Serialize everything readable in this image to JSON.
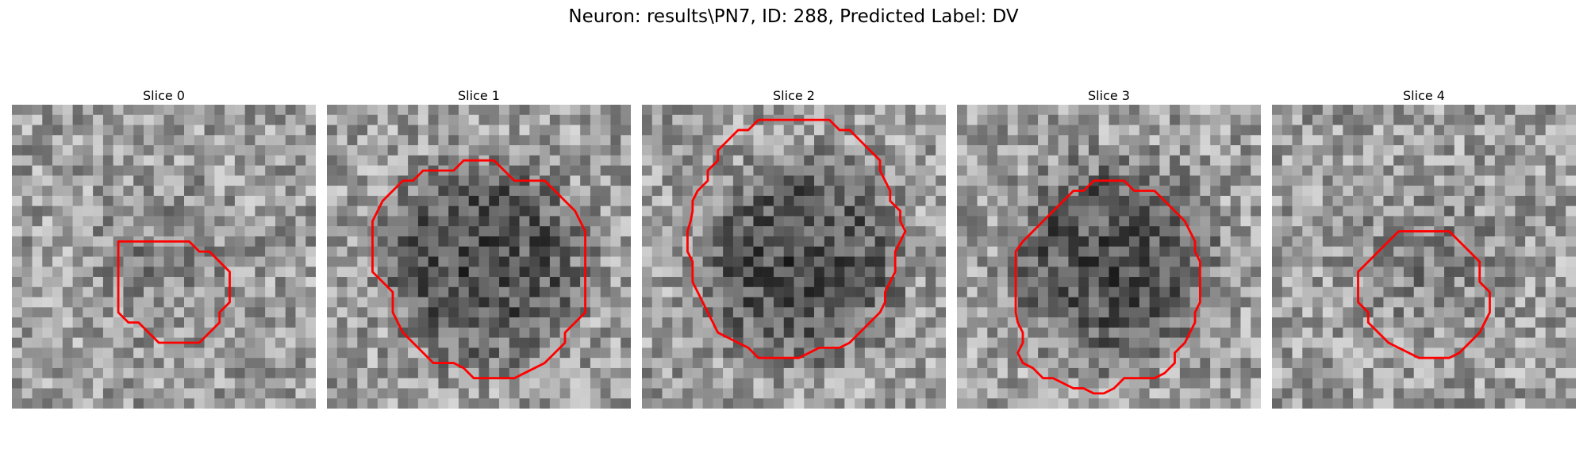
{
  "figure": {
    "title": "Neuron: results\\PN7, ID: 288, Predicted Label: DV",
    "contour_color": "#ff0000",
    "colormap": "gray"
  },
  "panels": [
    {
      "title": "Slice 0",
      "seed": 11,
      "dark_center": false
    },
    {
      "title": "Slice 1",
      "seed": 23,
      "dark_center": true
    },
    {
      "title": "Slice 2",
      "seed": 37,
      "dark_center": true
    },
    {
      "title": "Slice 3",
      "seed": 51,
      "dark_center": true
    },
    {
      "title": "Slice 4",
      "seed": 67,
      "dark_center": false
    }
  ]
}
